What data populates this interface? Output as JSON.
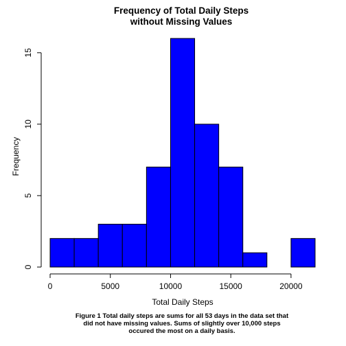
{
  "chart_data": {
    "type": "bar",
    "title_lines": [
      "Frequency of Total Daily Steps",
      "without Missing Values"
    ],
    "xlabel": "Total Daily Steps",
    "ylabel": "Frequency",
    "bins": [
      {
        "start": 0,
        "end": 2000,
        "count": 2
      },
      {
        "start": 2000,
        "end": 4000,
        "count": 2
      },
      {
        "start": 4000,
        "end": 6000,
        "count": 3
      },
      {
        "start": 6000,
        "end": 8000,
        "count": 3
      },
      {
        "start": 8000,
        "end": 10000,
        "count": 7
      },
      {
        "start": 10000,
        "end": 12000,
        "count": 16
      },
      {
        "start": 12000,
        "end": 14000,
        "count": 10
      },
      {
        "start": 14000,
        "end": 16000,
        "count": 7
      },
      {
        "start": 16000,
        "end": 18000,
        "count": 1
      },
      {
        "start": 18000,
        "end": 20000,
        "count": 0
      },
      {
        "start": 20000,
        "end": 22000,
        "count": 2
      }
    ],
    "xlim": [
      0,
      22000
    ],
    "ylim": [
      0,
      16
    ],
    "x_ticks": [
      0,
      5000,
      10000,
      15000,
      20000
    ],
    "x_tick_labels": [
      "0",
      "5000",
      "10000",
      "15000",
      "20000"
    ],
    "y_ticks": [
      0,
      5,
      10,
      15
    ],
    "y_tick_labels": [
      "0",
      "5",
      "10",
      "15"
    ],
    "bar_color": "#0000ff",
    "grid": false,
    "legend": "none"
  },
  "caption_lines": [
    "Figure 1 Total daily steps are sums for all 53 days in the data set that",
    "did not have missing values. Sums of slightly over 10,000 steps",
    "occured the most on a daily basis."
  ]
}
